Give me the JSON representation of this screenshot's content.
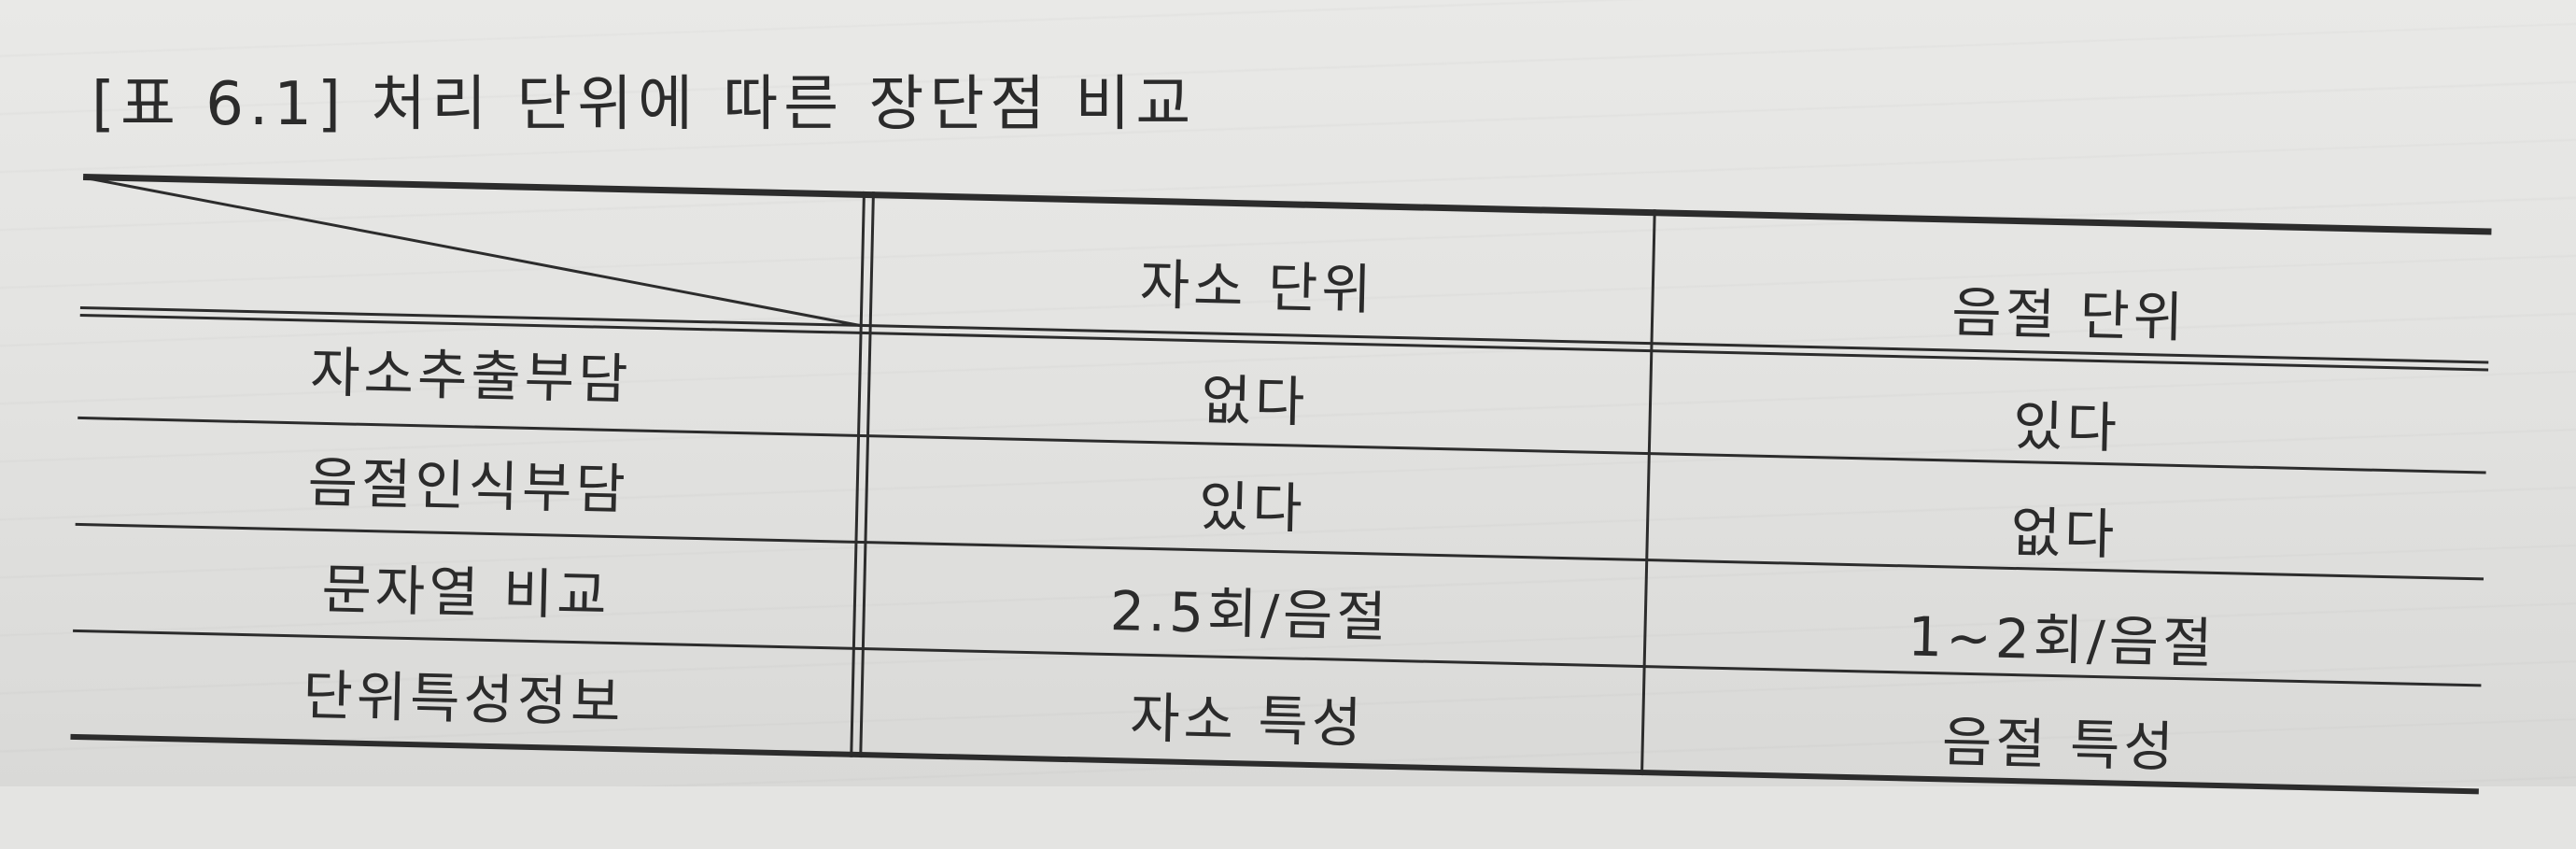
{
  "caption": "[표 6.1] 처리 단위에 따른 장단점 비교",
  "table": {
    "columns": [
      "자소 단위",
      "음절 단위"
    ],
    "rows": [
      {
        "label": "자소추출부담",
        "values": [
          "없다",
          "있다"
        ]
      },
      {
        "label": "음절인식부담",
        "values": [
          "있다",
          "없다"
        ]
      },
      {
        "label": "문자열 비교",
        "values": [
          "2.5회/음절",
          "1~2회/음절"
        ]
      },
      {
        "label": "단위특성정보",
        "values": [
          "자소 특성",
          "음절 특성"
        ]
      }
    ]
  }
}
